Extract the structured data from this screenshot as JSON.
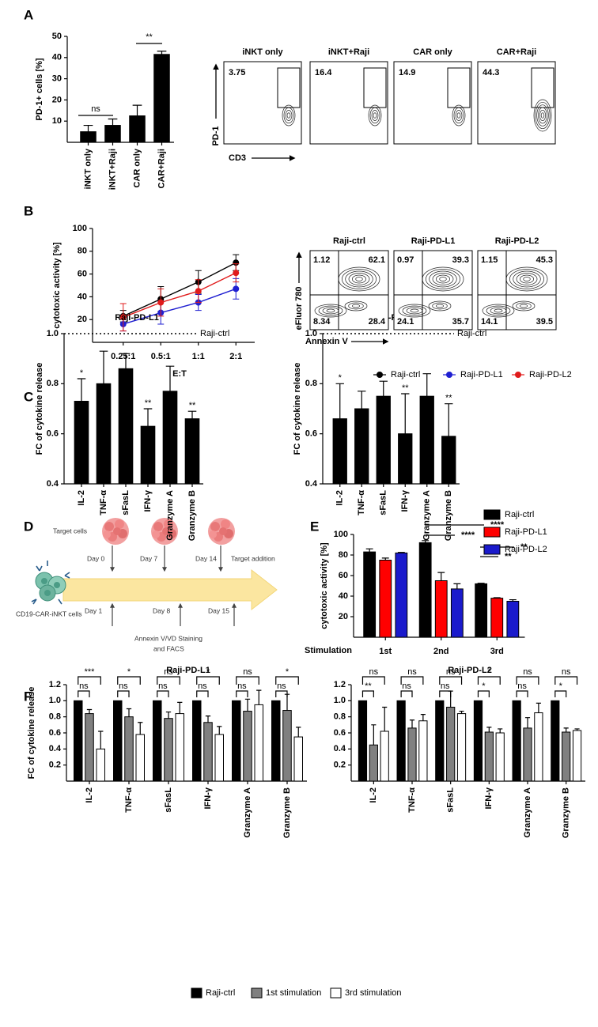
{
  "panels": [
    "A",
    "B",
    "C",
    "D",
    "E",
    "F"
  ],
  "chart_data": [
    {
      "type": "bar",
      "ylabel": "PD-1+ cells [%]",
      "categories": [
        "iNKT only",
        "iNKT+Raji",
        "CAR only",
        "CAR+Raji"
      ],
      "values": [
        5,
        8,
        12.5,
        41.5
      ],
      "errors": [
        3,
        3,
        5,
        1.5
      ],
      "color": "#000000",
      "ylim": [
        0,
        50
      ],
      "yticks": [
        10,
        20,
        30,
        40,
        50
      ],
      "annotations": [
        "ns",
        "**"
      ]
    },
    {
      "type": "line",
      "ylabel": "cytotoxic activity [%]",
      "xlabel": "E:T",
      "categories": [
        "0.25:1",
        "0.5:1",
        "1:1",
        "2:1"
      ],
      "series": [
        {
          "name": "Raji-ctrl",
          "color": "#000000",
          "values": [
            23,
            38,
            53,
            70
          ],
          "errors": [
            5,
            11,
            10,
            7
          ]
        },
        {
          "name": "Raji-PD-L1",
          "color": "#1f1fd1",
          "values": [
            16,
            26,
            35,
            47
          ],
          "errors": [
            6,
            10,
            7,
            9
          ]
        },
        {
          "name": "Raji-PD-L2",
          "color": "#e01b1b",
          "values": [
            22,
            35,
            45,
            61
          ],
          "errors": [
            12,
            12,
            10,
            8
          ]
        }
      ],
      "ylim": [
        0,
        100
      ],
      "yticks": [
        20,
        40,
        60,
        80,
        100
      ]
    },
    {
      "type": "bar",
      "title": "Raji-PD-L1",
      "ylabel": "FC of cytokine release",
      "categories": [
        "IL-2",
        "TNF-α",
        "sFasL",
        "IFN-γ",
        "Granzyme A",
        "Granzyme B"
      ],
      "values": [
        0.73,
        0.8,
        0.86,
        0.63,
        0.77,
        0.66
      ],
      "errors": [
        0.09,
        0.13,
        0.06,
        0.07,
        0.1,
        0.03
      ],
      "value_annotations": [
        "*",
        null,
        null,
        "**",
        null,
        "**"
      ],
      "color": "#000000",
      "ylim": [
        0.4,
        1.0
      ],
      "yticks": [
        0.4,
        0.6,
        0.8,
        {
          "value": 1,
          "label": "1.0"
        }
      ],
      "reference": {
        "value": 1,
        "label": "Raji-ctrl"
      }
    },
    {
      "type": "bar",
      "title": "Raji-PD-L2",
      "ylabel": "FC of cytokine release",
      "categories": [
        "IL-2",
        "TNF-α",
        "sFasL",
        "IFN-γ",
        "Granzyme A",
        "Granzyme B"
      ],
      "values": [
        0.66,
        0.7,
        0.75,
        0.6,
        0.75,
        0.59
      ],
      "errors": [
        0.14,
        0.07,
        0.06,
        0.16,
        0.09,
        0.13
      ],
      "value_annotations": [
        "*",
        null,
        null,
        "**",
        null,
        "**"
      ],
      "color": "#000000",
      "ylim": [
        0.4,
        1.0
      ],
      "yticks": [
        0.4,
        0.6,
        0.8,
        {
          "value": 1,
          "label": "1.0"
        }
      ],
      "reference": {
        "value": 1,
        "label": "Raji-ctrl"
      }
    },
    {
      "type": "bar",
      "ylabel": "cytotoxic activity [%]",
      "xlabel": "Stimulation",
      "categories": [
        "1st",
        "2nd",
        "3rd"
      ],
      "series": [
        {
          "name": "Raji-ctrl",
          "color": "#000000",
          "values": [
            83,
            92,
            52
          ],
          "errors": [
            3,
            2,
            0.5
          ]
        },
        {
          "name": "Raji-PD-L1",
          "color": "#ff0000",
          "values": [
            75,
            55,
            38
          ],
          "errors": [
            2,
            8,
            0.5
          ]
        },
        {
          "name": "Raji-PD-L2",
          "color": "#1a1acc",
          "values": [
            82,
            47,
            35
          ],
          "errors": [
            0.5,
            5,
            1.5
          ]
        }
      ],
      "ylim": [
        0,
        100
      ],
      "yticks": [
        20,
        40,
        60,
        80,
        100
      ],
      "annotations": [
        "****",
        "****",
        "**",
        "**"
      ]
    },
    {
      "type": "bar",
      "title": "Raji-PD-L1",
      "ylabel": "FC of cytokine release",
      "categories": [
        "IL-2",
        "TNF-α",
        "sFasL",
        "IFN-γ",
        "Granzyme A",
        "Granzyme B"
      ],
      "series": [
        {
          "name": "Raji-ctrl",
          "color": "#000000",
          "values": [
            1,
            1,
            1,
            1,
            1,
            1
          ]
        },
        {
          "name": "1st stimulation",
          "color": "#808080",
          "values": [
            0.84,
            0.8,
            0.78,
            0.73,
            0.87,
            0.88
          ],
          "errors": [
            0.05,
            0.1,
            0.08,
            0.08,
            0.15,
            0.2
          ]
        },
        {
          "name": "3rd stimulation",
          "color": "#ffffff",
          "values": [
            0.4,
            0.58,
            0.84,
            0.58,
            0.95,
            0.55
          ],
          "errors": [
            0.22,
            0.15,
            0.14,
            0.1,
            0.18,
            0.12
          ]
        }
      ],
      "ylim": [
        0,
        1.2
      ],
      "yticks": [
        0.2,
        0.4,
        0.6,
        0.8,
        {
          "value": 1,
          "label": "1.0"
        },
        1.2
      ],
      "significance": {
        "outer": [
          "***",
          "*",
          "ns",
          "*",
          "ns",
          "*"
        ],
        "inner": [
          "ns",
          "ns",
          "ns",
          "ns",
          "ns",
          "ns"
        ]
      }
    },
    {
      "type": "bar",
      "title": "Raji-PD-L2",
      "categories": [
        "IL-2",
        "TNF-α",
        "sFasL",
        "IFN-γ",
        "Granzyme A",
        "Granzyme B"
      ],
      "series": [
        {
          "name": "Raji-ctrl",
          "color": "#000000",
          "values": [
            1,
            1,
            1,
            1,
            1,
            1
          ]
        },
        {
          "name": "1st stimulation",
          "color": "#808080",
          "values": [
            0.45,
            0.66,
            0.92,
            0.61,
            0.66,
            0.61
          ],
          "errors": [
            0.25,
            0.1,
            0.2,
            0.06,
            0.13,
            0.05
          ]
        },
        {
          "name": "3rd stimulation",
          "color": "#ffffff",
          "values": [
            0.62,
            0.75,
            0.84,
            0.6,
            0.85,
            0.63
          ],
          "errors": [
            0.3,
            0.08,
            0.03,
            0.05,
            0.12,
            0.02
          ]
        }
      ],
      "ylim": [
        0,
        1.2
      ],
      "yticks": [
        0.2,
        0.4,
        0.6,
        0.8,
        {
          "value": 1,
          "label": "1.0"
        },
        1.2
      ],
      "significance": {
        "outer": [
          "ns",
          "ns",
          "ns",
          "*",
          "ns",
          "ns"
        ],
        "inner": [
          "**",
          "ns",
          "ns",
          "*",
          "ns",
          "*"
        ]
      }
    }
  ],
  "flow_cytometry": [
    {
      "y_label": "PD-1",
      "x_label": "CD3",
      "plots": [
        {
          "title": "iNKT only",
          "gate": 3.75
        },
        {
          "title": "iNKT+Raji",
          "gate": 16.4
        },
        {
          "title": "CAR only",
          "gate": 14.9
        },
        {
          "title": "CAR+Raji",
          "gate": 44.3
        }
      ]
    },
    {
      "y_label": "eFluor 780",
      "x_label": "Annexin V",
      "plots": [
        {
          "title": "Raji-ctrl",
          "quadrants": [
            1.12,
            62.1,
            8.34,
            28.4
          ]
        },
        {
          "title": "Raji-PD-L1",
          "quadrants": [
            0.97,
            39.3,
            24.1,
            35.7
          ]
        },
        {
          "title": "Raji-PD-L2",
          "quadrants": [
            1.15,
            45.3,
            14.1,
            39.5
          ]
        }
      ]
    }
  ],
  "diagram": {
    "target_cells": "Target cells",
    "target_days": [
      "Day 0",
      "Day 7",
      "Day 14"
    ],
    "target_addition": "Target addition",
    "effector_cells": "CD19-CAR-iNKT cells",
    "staining_days": [
      "Day 1",
      "Day 8",
      "Day 15"
    ],
    "staining": [
      "Annexin V/VD Staining",
      "and FACS"
    ]
  }
}
